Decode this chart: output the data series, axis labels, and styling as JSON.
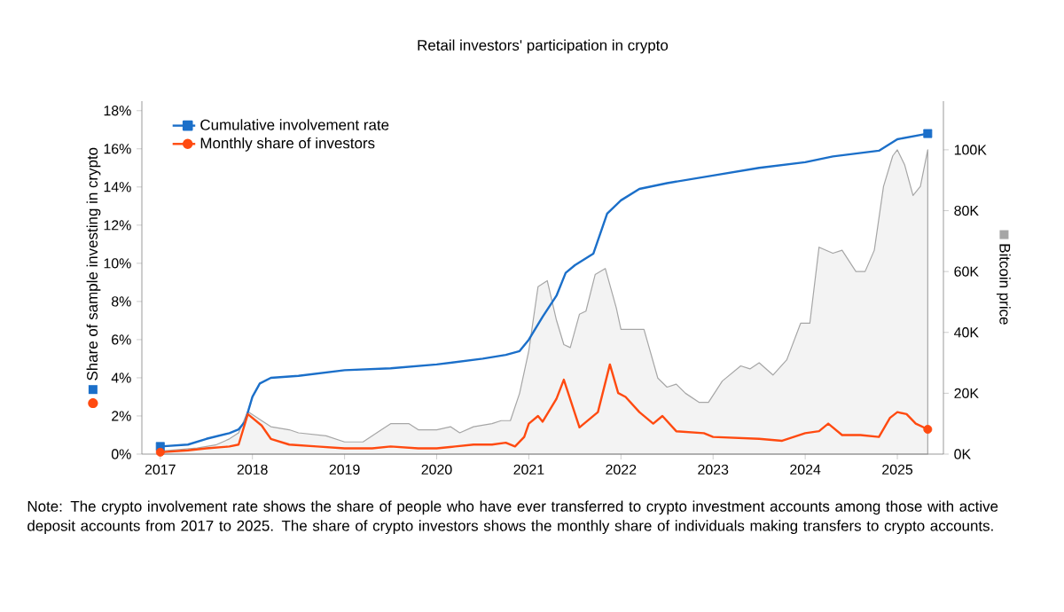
{
  "chart_data": {
    "type": "line",
    "title": "Retail investors' participation in crypto",
    "ylabel": "Share of sample investing in crypto",
    "y2label": "Bitcoin price",
    "annotations": [
      "Note: The crypto involvement rate shows the share of people who have ever transferred to crypto investment accounts among those with active deposit accounts from 2017 to 2025. The share of crypto investors shows the monthly share of individuals making transfers to crypto accounts."
    ],
    "xlim": [
      2016.8,
      2025.5
    ],
    "xticks": [
      2017,
      2018,
      2019,
      2020,
      2021,
      2022,
      2023,
      2024,
      2025
    ],
    "ylim": [
      0,
      18.5
    ],
    "yticks": [
      {
        "value": 0,
        "label": "0%"
      },
      {
        "value": 2,
        "label": "2%"
      },
      {
        "value": 4,
        "label": "4%"
      },
      {
        "value": 6,
        "label": "6%"
      },
      {
        "value": 8,
        "label": "8%"
      },
      {
        "value": 10,
        "label": "10%"
      },
      {
        "value": 12,
        "label": "12%"
      },
      {
        "value": 14,
        "label": "14%"
      },
      {
        "value": 16,
        "label": "16%"
      },
      {
        "value": 18,
        "label": "18%"
      }
    ],
    "y2lim": [
      0,
      116
    ],
    "y2ticks": [
      {
        "value": 0,
        "label": "0K"
      },
      {
        "value": 20,
        "label": "20K"
      },
      {
        "value": 40,
        "label": "40K"
      },
      {
        "value": 60,
        "label": "60K"
      },
      {
        "value": 80,
        "label": "80K"
      },
      {
        "value": 100,
        "label": "100K"
      }
    ],
    "legend": "top left",
    "grid": false,
    "line_style": "solid",
    "series": [
      {
        "type": "area",
        "axis": "y2",
        "color": "#a6a6a6",
        "x": [
          2017.0,
          2017.4,
          2017.6,
          2017.75,
          2017.85,
          2017.95,
          2018.1,
          2018.2,
          2018.4,
          2018.5,
          2018.8,
          2019.0,
          2019.2,
          2019.4,
          2019.5,
          2019.7,
          2019.8,
          2020.0,
          2020.15,
          2020.25,
          2020.4,
          2020.6,
          2020.7,
          2020.8,
          2020.9,
          2021.0,
          2021.1,
          2021.2,
          2021.3,
          2021.38,
          2021.45,
          2021.55,
          2021.62,
          2021.72,
          2021.83,
          2021.95,
          2022.0,
          2022.15,
          2022.25,
          2022.4,
          2022.5,
          2022.6,
          2022.7,
          2022.85,
          2022.95,
          2023.1,
          2023.3,
          2023.4,
          2023.5,
          2023.65,
          2023.8,
          2023.95,
          2024.05,
          2024.15,
          2024.3,
          2024.4,
          2024.55,
          2024.65,
          2024.75,
          2024.85,
          2024.95,
          2025.0,
          2025.08,
          2025.17,
          2025.25,
          2025.33
        ],
        "values": [
          1,
          2,
          3,
          5,
          7,
          14,
          11,
          9,
          8,
          7,
          6,
          4,
          4,
          8,
          10,
          10,
          8,
          8,
          9,
          7,
          9,
          10,
          11,
          11,
          20,
          34,
          55,
          57,
          44,
          36,
          35,
          46,
          47,
          59,
          61,
          48,
          41,
          41,
          41,
          25,
          22,
          23,
          20,
          17,
          17,
          24,
          29,
          28,
          30,
          26,
          31,
          43,
          43,
          68,
          66,
          67,
          60,
          60,
          67,
          88,
          98,
          100,
          95,
          85,
          88,
          100
        ]
      },
      {
        "type": "line",
        "name": "Cumulative involvement rate",
        "color": "#1b6fc9",
        "x": [
          2017.0,
          2017.3,
          2017.5,
          2017.75,
          2017.85,
          2017.92,
          2018.0,
          2018.08,
          2018.2,
          2018.5,
          2019.0,
          2019.5,
          2020.0,
          2020.5,
          2020.75,
          2020.9,
          2021.0,
          2021.15,
          2021.3,
          2021.4,
          2021.5,
          2021.7,
          2021.85,
          2022.0,
          2022.2,
          2022.5,
          2023.0,
          2023.5,
          2024.0,
          2024.3,
          2024.8,
          2025.0,
          2025.33
        ],
        "values": [
          0.4,
          0.5,
          0.8,
          1.1,
          1.3,
          1.7,
          3.0,
          3.7,
          4.0,
          4.1,
          4.4,
          4.5,
          4.7,
          5.0,
          5.2,
          5.4,
          6.0,
          7.2,
          8.3,
          9.5,
          9.9,
          10.5,
          12.6,
          13.3,
          13.9,
          14.2,
          14.6,
          15.0,
          15.3,
          15.6,
          15.9,
          16.5,
          16.8
        ]
      },
      {
        "type": "line",
        "name": "Monthly share of investors",
        "color": "#ff4a10",
        "x": [
          2017.0,
          2017.3,
          2017.5,
          2017.75,
          2017.85,
          2017.95,
          2018.1,
          2018.2,
          2018.4,
          2018.7,
          2019.0,
          2019.3,
          2019.5,
          2019.8,
          2020.0,
          2020.2,
          2020.4,
          2020.6,
          2020.75,
          2020.85,
          2020.95,
          2021.0,
          2021.1,
          2021.15,
          2021.3,
          2021.38,
          2021.55,
          2021.75,
          2021.88,
          2021.97,
          2022.05,
          2022.2,
          2022.35,
          2022.45,
          2022.6,
          2022.9,
          2023.0,
          2023.5,
          2023.75,
          2024.0,
          2024.15,
          2024.25,
          2024.4,
          2024.6,
          2024.8,
          2024.92,
          2025.0,
          2025.1,
          2025.2,
          2025.33
        ],
        "values": [
          0.1,
          0.2,
          0.3,
          0.4,
          0.5,
          2.1,
          1.5,
          0.8,
          0.5,
          0.4,
          0.3,
          0.3,
          0.4,
          0.3,
          0.3,
          0.4,
          0.5,
          0.5,
          0.6,
          0.4,
          0.9,
          1.6,
          2.0,
          1.7,
          2.9,
          3.9,
          1.4,
          2.2,
          4.7,
          3.2,
          3.0,
          2.2,
          1.6,
          2.0,
          1.2,
          1.1,
          0.9,
          0.8,
          0.7,
          1.1,
          1.2,
          1.6,
          1.0,
          1.0,
          0.9,
          1.9,
          2.2,
          2.1,
          1.6,
          1.3
        ]
      },
      {
        "type": "scatter",
        "color": "#1b6fc9",
        "marker": "square",
        "x": [
          2017.0,
          2025.33
        ],
        "values": [
          0.4,
          16.8
        ]
      },
      {
        "type": "scatter",
        "color": "#ff4a10",
        "marker": "circle",
        "x": [
          2017.0,
          2025.33
        ],
        "values": [
          0.1,
          1.3
        ]
      }
    ]
  }
}
